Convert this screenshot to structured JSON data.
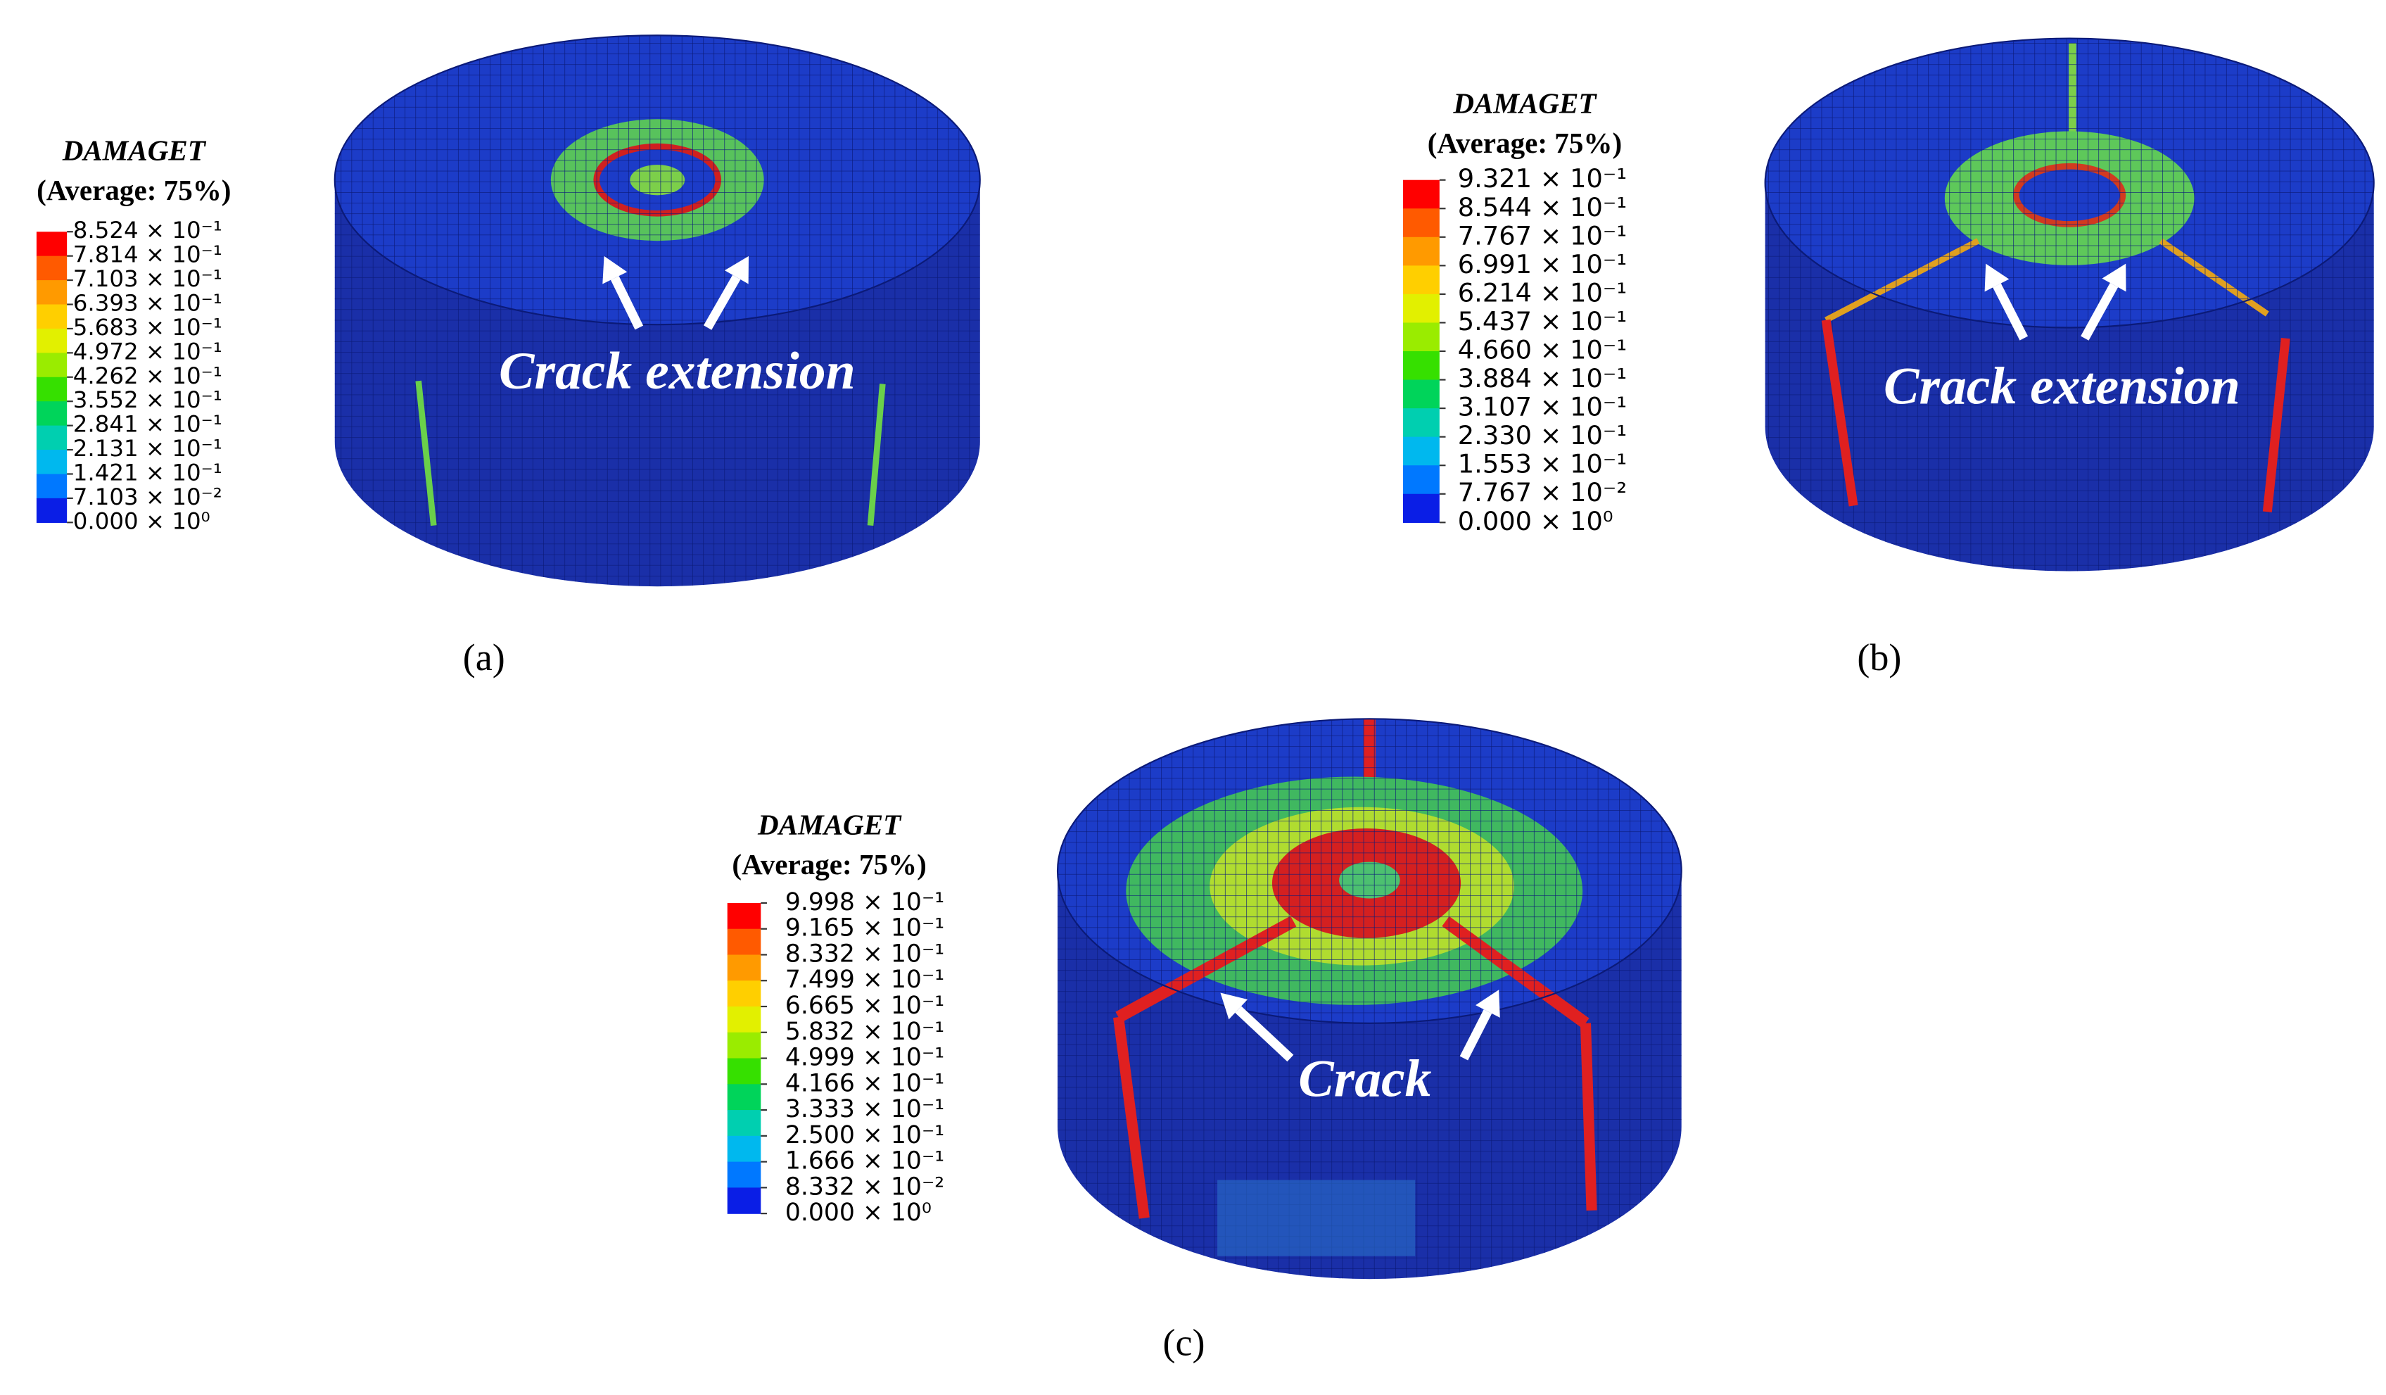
{
  "panels": [
    {
      "legend": {
        "title": "DAMAGET",
        "subtitle": "(Average: 75%)",
        "labels": [
          "8.524 × 10⁻¹",
          "7.814 × 10⁻¹",
          "7.103 × 10⁻¹",
          "6.393 × 10⁻¹",
          "5.683 × 10⁻¹",
          "4.972 × 10⁻¹",
          "4.262 × 10⁻¹",
          "3.552 × 10⁻¹",
          "2.841 × 10⁻¹",
          "2.131 × 10⁻¹",
          "1.421 × 10⁻¹",
          "7.103 × 10⁻²",
          "0.000 × 10⁰"
        ]
      },
      "annotation": "Crack extension",
      "caption": "(a)"
    },
    {
      "legend": {
        "title": "DAMAGET",
        "subtitle": "(Average: 75%)",
        "labels": [
          "9.321 × 10⁻¹",
          "8.544 × 10⁻¹",
          "7.767 × 10⁻¹",
          "6.991 × 10⁻¹",
          "6.214 × 10⁻¹",
          "5.437 × 10⁻¹",
          "4.660 × 10⁻¹",
          "3.884 × 10⁻¹",
          "3.107 × 10⁻¹",
          "2.330 × 10⁻¹",
          "1.553 × 10⁻¹",
          "7.767 × 10⁻²",
          "0.000 × 10⁰"
        ]
      },
      "annotation": "Crack extension",
      "caption": "(b)"
    },
    {
      "legend": {
        "title": "DAMAGET",
        "subtitle": "(Average: 75%)",
        "labels": [
          "9.998 × 10⁻¹",
          "9.165 × 10⁻¹",
          "8.332 × 10⁻¹",
          "7.499 × 10⁻¹",
          "6.665 × 10⁻¹",
          "5.832 × 10⁻¹",
          "4.999 × 10⁻¹",
          "4.166 × 10⁻¹",
          "3.333 × 10⁻¹",
          "2.500 × 10⁻¹",
          "1.666 × 10⁻¹",
          "8.332 × 10⁻²",
          "0.000 × 10⁰"
        ]
      },
      "annotation": "Crack",
      "caption": "(c)"
    }
  ]
}
